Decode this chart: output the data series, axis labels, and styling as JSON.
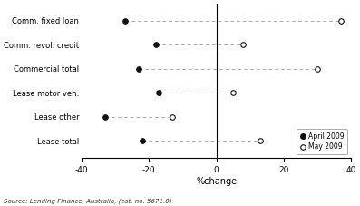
{
  "categories": [
    "Comm. fixed loan",
    "Comm. revol. credit",
    "Commercial total",
    "Lease motor veh.",
    "Lease other",
    "Lease total"
  ],
  "april_values": [
    -27,
    -18,
    -23,
    -17,
    -33,
    -22
  ],
  "may_values": [
    37,
    8,
    30,
    5,
    -13,
    13
  ],
  "xlim": [
    -40,
    40
  ],
  "xlabel": "%change",
  "xticks": [
    -40,
    -20,
    0,
    20,
    40
  ],
  "legend_april": "April 2009",
  "legend_may": "May 2009",
  "source_text": "Source: Lending Finance, Australia, (cat. no. 5671.0)",
  "bg_color": "#ffffff",
  "dash_color": "#aaaaaa",
  "marker_color": "#111111"
}
